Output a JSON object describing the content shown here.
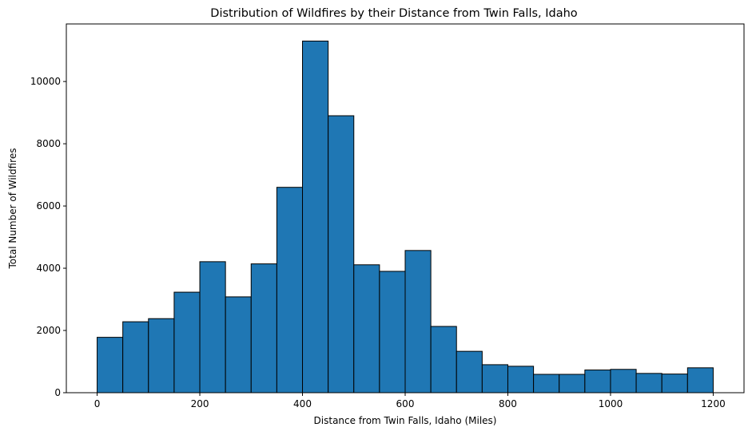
{
  "chart_data": {
    "type": "bar",
    "subtype": "histogram",
    "title": "Distribution of Wildfires by their Distance from Twin Falls, Idaho",
    "xlabel": "Distance from Twin Falls, Idaho (Miles)",
    "ylabel": "Total Number of Wildfires",
    "bin_width": 50,
    "bin_edges": [
      0,
      50,
      100,
      150,
      200,
      250,
      300,
      350,
      400,
      450,
      500,
      550,
      600,
      650,
      700,
      750,
      800,
      850,
      900,
      950,
      1000,
      1050,
      1100,
      1150,
      1200
    ],
    "values": [
      1780,
      2280,
      2380,
      3230,
      4210,
      3080,
      4140,
      6600,
      11300,
      8900,
      4110,
      3900,
      4570,
      2130,
      1330,
      900,
      850,
      590,
      590,
      730,
      750,
      620,
      600,
      800
    ],
    "xlim": [
      -60,
      1260
    ],
    "ylim": [
      0,
      11850
    ],
    "x_ticks": [
      0,
      200,
      400,
      600,
      800,
      1000,
      1200
    ],
    "x_tick_labels": [
      "0",
      "200",
      "400",
      "600",
      "800",
      "1000",
      "1200"
    ],
    "y_ticks": [
      0,
      2000,
      4000,
      6000,
      8000,
      10000
    ],
    "y_tick_labels": [
      "0",
      "2000",
      "4000",
      "6000",
      "8000",
      "10000"
    ],
    "grid": false,
    "legend": "none",
    "bar_color": "#1f77b4",
    "edge_color": "#000000"
  }
}
